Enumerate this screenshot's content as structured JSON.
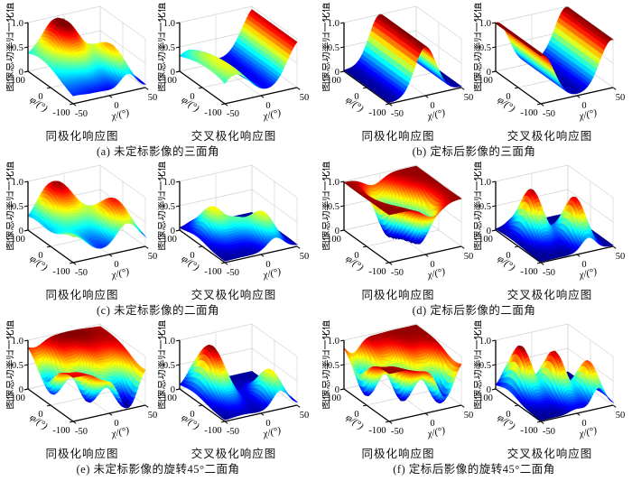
{
  "chart_data": {
    "type": "surface3d-grid",
    "colormap": "jet",
    "grid": "on",
    "x": {
      "label": "χ/(°)",
      "range": [
        -50,
        50
      ],
      "ticks": [
        "-50",
        "0",
        "50"
      ]
    },
    "y": {
      "label": "φ/(°)",
      "range": [
        -100,
        100
      ],
      "ticks": [
        "-100",
        "0",
        "100"
      ]
    },
    "z": {
      "label": "图像总功率归一化值",
      "range": [
        0,
        1
      ],
      "ticks": [
        "0",
        "0.5",
        "1.0"
      ]
    },
    "groups": [
      {
        "caption": "(a) 未定标影像的三面角",
        "plots": [
          {
            "title": "同极化响应图",
            "surface": {
              "base": 0.04,
              "bumps": [
                [
                  1.0,
                  -12,
                  26,
                  65,
                  105
                ],
                [
                  0.62,
                  26,
                  15,
                  -30,
                  85
                ],
                [
                  0.3,
                  -50,
                  22,
                  30,
                  130
                ]
              ]
            }
          },
          {
            "title": "交叉极化响应图",
            "surface": {
              "base": 0.03,
              "bumps": [
                [
                  0.95,
                  56,
                  27,
                  null,
                  null
                ],
                [
                  0.55,
                  -37,
                  26,
                  -10,
                  170
                ],
                [
                  0.12,
                  -25,
                  30,
                  -100,
                  70
                ]
              ]
            }
          }
        ]
      },
      {
        "caption": "(b) 定标后影像的三面角",
        "plots": [
          {
            "title": "同极化响应图",
            "surface": {
              "base": 0.02,
              "bumps": [
                [
                  0.98,
                  0,
                  21,
                  null,
                  null
                ]
              ]
            }
          },
          {
            "title": "交叉极化响应图",
            "surface": {
              "base": 0.02,
              "bumps": [
                [
                  0.97,
                  -48,
                  23,
                  null,
                  null
                ],
                [
                  0.97,
                  48,
                  23,
                  null,
                  null
                ]
              ]
            }
          }
        ]
      },
      {
        "caption": "(c) 未定标影像的二面角",
        "plots": [
          {
            "title": "同极化响应图",
            "surface": {
              "base": 0.07,
              "bumps": [
                [
                  0.9,
                  -18,
                  28,
                  70,
                  85
                ],
                [
                  0.78,
                  25,
                  22,
                  -45,
                  80
                ],
                [
                  0.45,
                  -50,
                  26,
                  -100,
                  85
                ]
              ]
            }
          },
          {
            "title": "交叉极化响应图",
            "surface": {
              "base": 0.03,
              "bumps": [
                [
                  0.6,
                  -27,
                  17,
                  25,
                  60
                ],
                [
                  0.58,
                  20,
                  16,
                  -45,
                  60
                ],
                [
                  0.32,
                  -3,
                  14,
                  -8,
                  45
                ]
              ]
            }
          }
        ]
      },
      {
        "caption": "(d) 定标后影像的二面角",
        "plots": [
          {
            "title": "同极化响应图",
            "surface": {
              "base": 0.98,
              "bumps": [
                [
                  -0.96,
                  -10,
                  18,
                  30,
                  55
                ],
                [
                  -0.96,
                  10,
                  18,
                  -35,
                  55
                ]
              ]
            }
          },
          {
            "title": "交叉极化响应图",
            "surface": {
              "base": 0.02,
              "bumps": [
                [
                  0.95,
                  -22,
                  15,
                  30,
                  55
                ],
                [
                  0.9,
                  16,
                  14,
                  -40,
                  55
                ]
              ]
            }
          }
        ]
      },
      {
        "caption": "(e) 未定标影像的旋转45°二面角",
        "plots": [
          {
            "title": "同极化响应图",
            "surface": {
              "base": 0.9,
              "bumps": [
                [
                  -0.82,
                  -40,
                  15,
                  25,
                  55
                ],
                [
                  -0.88,
                  -8,
                  15,
                  -30,
                  55
                ],
                [
                  -0.92,
                  26,
                  19,
                  -85,
                  70
                ],
                [
                  0.1,
                  5,
                  55,
                  70,
                  110
                ]
              ]
            }
          },
          {
            "title": "交叉极化响应图",
            "surface": {
              "base": 0.03,
              "bumps": [
                [
                  0.97,
                  -25,
                  17,
                  40,
                  75
                ],
                [
                  0.62,
                  27,
                  15,
                  -55,
                  60
                ]
              ]
            }
          }
        ]
      },
      {
        "caption": "(f) 定标后影像的旋转45°二面角",
        "plots": [
          {
            "title": "同极化响应图",
            "surface": {
              "base": 0.98,
              "bumps": [
                [
                  -0.95,
                  -38,
                  14,
                  40,
                  55
                ],
                [
                  -0.97,
                  -6,
                  15,
                  -15,
                  55
                ],
                [
                  -0.95,
                  28,
                  17,
                  -70,
                  60
                ]
              ]
            }
          },
          {
            "title": "交叉极化响应图",
            "surface": {
              "base": 0.02,
              "bumps": [
                [
                  0.98,
                  -32,
                  13,
                  45,
                  60
                ],
                [
                  0.93,
                  -1,
                  13,
                  -5,
                  60
                ],
                [
                  0.8,
                  30,
                  13,
                  -55,
                  55
                ]
              ]
            }
          }
        ]
      }
    ]
  }
}
